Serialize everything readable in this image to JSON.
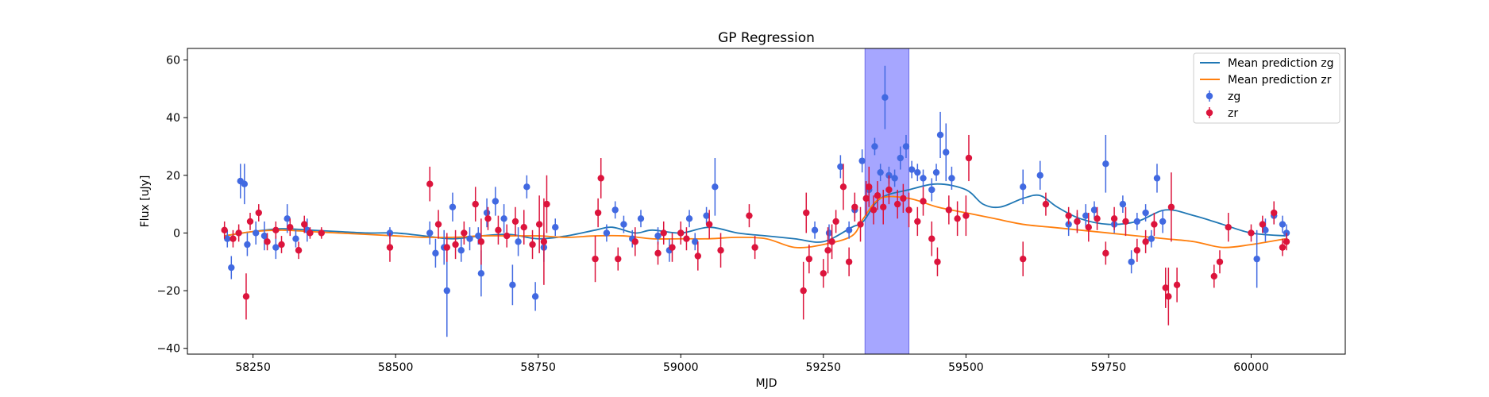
{
  "chart_data": {
    "type": "scatter",
    "title": "GP Regression",
    "xlabel": "MJD",
    "ylabel": "Flux [uJy]",
    "xlim": [
      58135,
      60165
    ],
    "ylim": [
      -42,
      64
    ],
    "xticks": [
      58250,
      58500,
      58750,
      59000,
      59250,
      59500,
      59750,
      60000
    ],
    "yticks": [
      -40,
      -20,
      0,
      20,
      40,
      60
    ],
    "legend_position": "top-right",
    "highlight_band": {
      "x0": 59323,
      "x1": 59400,
      "color": "#a6a6ff"
    },
    "legend": [
      {
        "label": "Mean prediction zg",
        "kind": "line",
        "color": "#1f77b4"
      },
      {
        "label": "Mean prediction zr",
        "kind": "line",
        "color": "#ff7f0e"
      },
      {
        "label": "zg",
        "kind": "errorbar",
        "color": "#4169e1"
      },
      {
        "label": "zr",
        "kind": "errorbar",
        "color": "#dc143c"
      }
    ],
    "series": [
      {
        "name": "Mean prediction zg",
        "kind": "line",
        "color": "#1f77b4",
        "x": [
          58200,
          58250,
          58300,
          58350,
          58400,
          58450,
          58500,
          58550,
          58600,
          58650,
          58700,
          58750,
          58800,
          58850,
          58880,
          58920,
          58950,
          59000,
          59050,
          59100,
          59150,
          59200,
          59250,
          59300,
          59320,
          59350,
          59400,
          59450,
          59500,
          59530,
          59560,
          59600,
          59630,
          59660,
          59700,
          59750,
          59800,
          59850,
          59900,
          59950,
          60000,
          60060
        ],
        "y": [
          -1,
          0.5,
          1.5,
          1,
          0.5,
          0,
          0,
          -1,
          -2,
          -1,
          -0.5,
          -2,
          -1,
          1,
          2,
          0,
          1,
          0,
          2,
          0,
          -1,
          -2,
          -3,
          2,
          4,
          12,
          15,
          17,
          15,
          10,
          9,
          12,
          13,
          9,
          5,
          3,
          4,
          8,
          6,
          3,
          0,
          -1
        ]
      },
      {
        "name": "Mean prediction zr",
        "kind": "line",
        "color": "#ff7f0e",
        "x": [
          58200,
          58250,
          58300,
          58350,
          58400,
          58450,
          58500,
          58550,
          58600,
          58650,
          58700,
          58750,
          58800,
          58850,
          58900,
          58950,
          59000,
          59050,
          59100,
          59150,
          59200,
          59250,
          59300,
          59320,
          59350,
          59400,
          59450,
          59500,
          59550,
          59600,
          59650,
          59700,
          59750,
          59800,
          59850,
          59900,
          59950,
          60000,
          60060
        ],
        "y": [
          -1,
          0.5,
          1,
          0.5,
          0,
          -0.5,
          -1,
          -1.5,
          -1.5,
          -1,
          -1,
          -1,
          -1.5,
          -1,
          -1,
          -2,
          -2,
          -2,
          -1.5,
          -2,
          -5,
          -4,
          -1,
          5,
          12,
          12,
          9,
          7,
          5,
          3,
          2,
          1,
          0,
          -1,
          -2,
          -3,
          -5,
          -4,
          -2
        ]
      },
      {
        "name": "zg",
        "kind": "errorbar",
        "color": "#4169e1",
        "x": [
          58205,
          58212,
          58228,
          58235,
          58240,
          58255,
          58270,
          58290,
          58310,
          58325,
          58345,
          58490,
          58560,
          58570,
          58585,
          58590,
          58600,
          58615,
          58630,
          58645,
          58650,
          58660,
          58675,
          58690,
          58705,
          58715,
          58730,
          58745,
          58760,
          58780,
          58870,
          58885,
          58900,
          58915,
          58930,
          58960,
          58980,
          59000,
          59015,
          59025,
          59045,
          59060,
          59235,
          59260,
          59280,
          59295,
          59305,
          59318,
          59330,
          59340,
          59350,
          59358,
          59365,
          59375,
          59385,
          59395,
          59405,
          59415,
          59425,
          59440,
          59448,
          59455,
          59465,
          59475,
          59600,
          59630,
          59680,
          59695,
          59710,
          59725,
          59745,
          59760,
          59775,
          59790,
          59800,
          59815,
          59825,
          59835,
          59845,
          60010,
          60025,
          60040,
          60055,
          60062
        ],
        "y": [
          -2,
          -12,
          18,
          17,
          -4,
          0,
          -1,
          -5,
          5,
          -2,
          1,
          0,
          0,
          -7,
          -5,
          -20,
          9,
          -6,
          -2,
          -1,
          -14,
          7,
          11,
          5,
          -18,
          -3,
          16,
          -22,
          -5,
          2,
          0,
          8,
          3,
          -2,
          5,
          -1,
          -6,
          0,
          5,
          -3,
          6,
          16,
          1,
          0,
          23,
          1,
          8,
          25,
          15,
          30,
          21,
          47,
          20,
          19,
          26,
          30,
          22,
          21,
          19,
          15,
          21,
          34,
          28,
          19,
          16,
          20,
          3,
          4,
          6,
          8,
          24,
          3,
          10,
          -10,
          4,
          7,
          -2,
          19,
          4,
          -9,
          1,
          6,
          3,
          0
        ],
        "err": [
          3,
          4,
          6,
          7,
          4,
          4,
          5,
          4,
          5,
          3,
          4,
          2,
          4,
          5,
          6,
          16,
          5,
          4,
          4,
          3,
          8,
          5,
          5,
          5,
          7,
          5,
          4,
          5,
          5,
          3,
          3,
          3,
          3,
          3,
          3,
          3,
          4,
          3,
          3,
          3,
          3,
          10,
          3,
          3,
          4,
          3,
          3,
          4,
          3,
          3,
          3,
          11,
          3,
          3,
          4,
          4,
          3,
          3,
          3,
          4,
          3,
          8,
          10,
          4,
          6,
          5,
          4,
          3,
          4,
          3,
          10,
          3,
          3,
          4,
          3,
          3,
          3,
          5,
          4,
          10,
          4,
          3,
          3,
          3
        ]
      },
      {
        "name": "zr",
        "kind": "errorbar",
        "color": "#dc143c",
        "x": [
          58200,
          58215,
          58225,
          58238,
          58245,
          58260,
          58275,
          58290,
          58300,
          58315,
          58330,
          58340,
          58350,
          58370,
          58490,
          58560,
          58575,
          58590,
          58605,
          58620,
          58640,
          58650,
          58662,
          58680,
          58695,
          58710,
          58725,
          58740,
          58752,
          58760,
          58765,
          58850,
          58855,
          58860,
          58890,
          58920,
          58960,
          58970,
          58985,
          59000,
          59010,
          59030,
          59050,
          59070,
          59120,
          59130,
          59215,
          59220,
          59225,
          59250,
          59258,
          59265,
          59272,
          59285,
          59295,
          59305,
          59315,
          59325,
          59330,
          59338,
          59345,
          59355,
          59365,
          59380,
          59390,
          59400,
          59415,
          59425,
          59440,
          59450,
          59470,
          59485,
          59500,
          59505,
          59600,
          59640,
          59680,
          59695,
          59715,
          59730,
          59745,
          59760,
          59780,
          59800,
          59815,
          59830,
          59850,
          59855,
          59860,
          59870,
          59935,
          59945,
          59960,
          60000,
          60020,
          60040,
          60055,
          60062
        ],
        "y": [
          1,
          -2,
          0,
          -22,
          4,
          7,
          -3,
          1,
          -4,
          2,
          -6,
          3,
          0,
          0,
          -5,
          17,
          3,
          -5,
          -4,
          0,
          10,
          -3,
          5,
          1,
          -1,
          4,
          2,
          -4,
          3,
          -3,
          10,
          -9,
          7,
          19,
          -9,
          -3,
          -7,
          0,
          -5,
          0,
          -2,
          -8,
          3,
          -6,
          6,
          -5,
          -20,
          7,
          -9,
          -14,
          -6,
          -3,
          4,
          16,
          -10,
          9,
          3,
          12,
          16,
          8,
          13,
          9,
          15,
          10,
          12,
          8,
          4,
          11,
          -2,
          -10,
          8,
          5,
          6,
          26,
          -9,
          10,
          6,
          4,
          2,
          5,
          -7,
          5,
          4,
          -6,
          -3,
          3,
          -19,
          -22,
          9,
          -18,
          -15,
          -10,
          2,
          0,
          3,
          7,
          -5,
          -3
        ],
        "err": [
          3,
          3,
          3,
          8,
          3,
          3,
          3,
          3,
          3,
          3,
          3,
          3,
          2,
          2,
          5,
          6,
          5,
          5,
          5,
          4,
          6,
          8,
          4,
          5,
          4,
          5,
          6,
          5,
          10,
          15,
          10,
          8,
          5,
          7,
          4,
          5,
          4,
          4,
          5,
          4,
          4,
          5,
          5,
          6,
          4,
          4,
          10,
          7,
          5,
          5,
          8,
          6,
          4,
          8,
          5,
          5,
          6,
          6,
          7,
          5,
          5,
          6,
          5,
          5,
          5,
          6,
          5,
          5,
          6,
          5,
          5,
          6,
          7,
          8,
          6,
          4,
          3,
          4,
          5,
          4,
          4,
          4,
          5,
          4,
          4,
          4,
          7,
          10,
          12,
          6,
          4,
          4,
          5,
          3,
          3,
          4,
          3,
          3
        ]
      }
    ]
  }
}
